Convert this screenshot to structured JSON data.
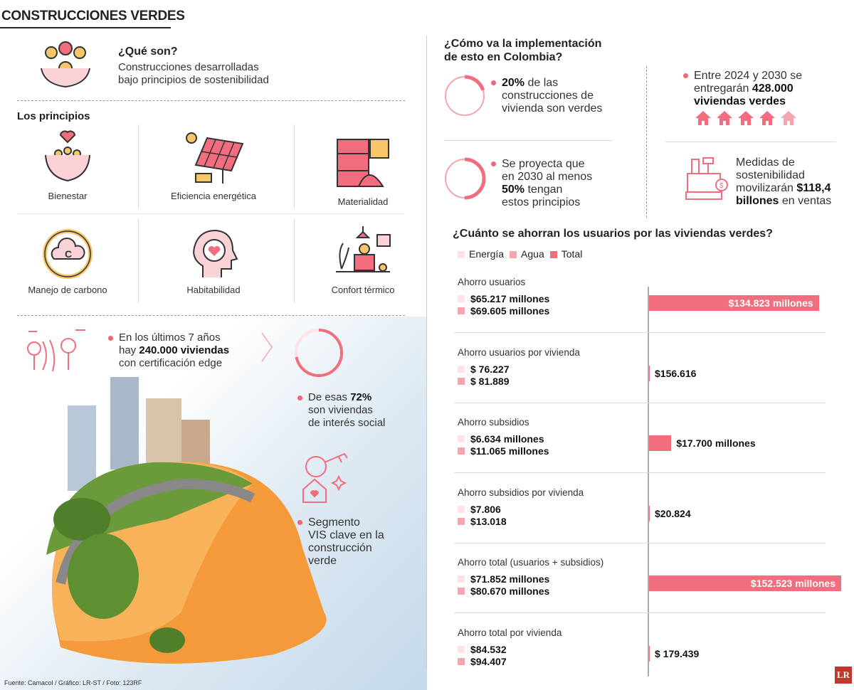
{
  "title": "CONSTRUCCIONES VERDES",
  "que_son": {
    "heading": "¿Qué son?",
    "text1": "Construcciones desarrolladas",
    "text2": "bajo principios de sostenibilidad"
  },
  "principios": {
    "heading": "Los principios",
    "items": [
      {
        "label": "Bienestar",
        "icon": "hands-heart-people-icon"
      },
      {
        "label": "Eficiencia energética",
        "icon": "solar-panel-icon"
      },
      {
        "label": "Materialidad",
        "icon": "materials-icon"
      },
      {
        "label": "Manejo de carbono",
        "icon": "carbon-cycle-icon"
      },
      {
        "label": "Habitabilidad",
        "icon": "head-heart-icon"
      },
      {
        "label": "Confort térmico",
        "icon": "home-office-icon"
      }
    ]
  },
  "edge": {
    "l1": "En los últimos 7 años",
    "l2a": "hay ",
    "l2b": "240.000 viviendas",
    "l3": "con certificación edge"
  },
  "vis": {
    "l1a": "De esas ",
    "l1b": "72%",
    "l2": "son viviendas",
    "l3": "de interés social",
    "pct": 72
  },
  "segmento": {
    "l1": "Segmento",
    "l2": "VIS clave en la",
    "l3": "construcción",
    "l4": "verde"
  },
  "colombia": {
    "heading1": "¿Cómo va la implementación",
    "heading2": "de esto en Colombia?",
    "s1": {
      "pct_text": "20%",
      "l1": " de las",
      "l2": "construcciones de",
      "l3": "vivienda son verdes",
      "pct": 20
    },
    "s2": {
      "l1": "Se proyecta que",
      "l2": "en 2030 al menos",
      "pct_text": "50%",
      "l3": " tengan",
      "l4": "estos principios",
      "pct": 50
    },
    "s3": {
      "l1": "Entre 2024 y 2030 se",
      "l2a": "entregarán ",
      "l2b": "428.000",
      "l3": "viviendas verdes"
    },
    "s4": {
      "l1": "Medidas de",
      "l2": "sostenibilidad",
      "l3a": "movilizarán ",
      "l3b": "$118,4",
      "l4a": "billones",
      "l4b": " en ventas"
    }
  },
  "colors": {
    "accent": "#f26d7d",
    "energia": "#fde3e6",
    "agua": "#f4a5ae",
    "total": "#f26d7d"
  },
  "chart_data": {
    "type": "bar",
    "title": "¿Cuánto se ahorran los usuarios por las viviendas verdes?",
    "legend": [
      "Energía",
      "Agua",
      "Total"
    ],
    "legend_placement": "top-left",
    "unit_note": "values in millones de pesos for bar scale",
    "rows": [
      {
        "category": "Ahorro usuarios",
        "energia": "$65.217 millones",
        "agua": "$69.605 millones",
        "total_label": "$134.823 millones",
        "total": 134823
      },
      {
        "category": "Ahorro usuarios por vivienda",
        "energia": "$ 76.227",
        "agua": "$ 81.889",
        "total_label": "$156.616",
        "total": 0.156616
      },
      {
        "category": "Ahorro subsidios",
        "energia": "$6.634 millones",
        "agua": "$11.065 millones",
        "total_label": "$17.700 millones",
        "total": 17700
      },
      {
        "category": "Ahorro subsidios por vivienda",
        "energia": "$7.806",
        "agua": "$13.018",
        "total_label": "$20.824",
        "total": 0.020824
      },
      {
        "category": "Ahorro total (usuarios + subsidios)",
        "energia": "$71.852 millones",
        "agua": "$80.670 millones",
        "total_label": "$152.523 millones",
        "total": 152523
      },
      {
        "category": "Ahorro total por vivienda",
        "energia": "$84.532",
        "agua": "$94.407",
        "total_label": "$ 179.439",
        "total": 0.179439
      }
    ]
  },
  "footer": "Fuente: Camacol / Gráfico: LR-ST / Foto: 123RF",
  "logo": "LR"
}
